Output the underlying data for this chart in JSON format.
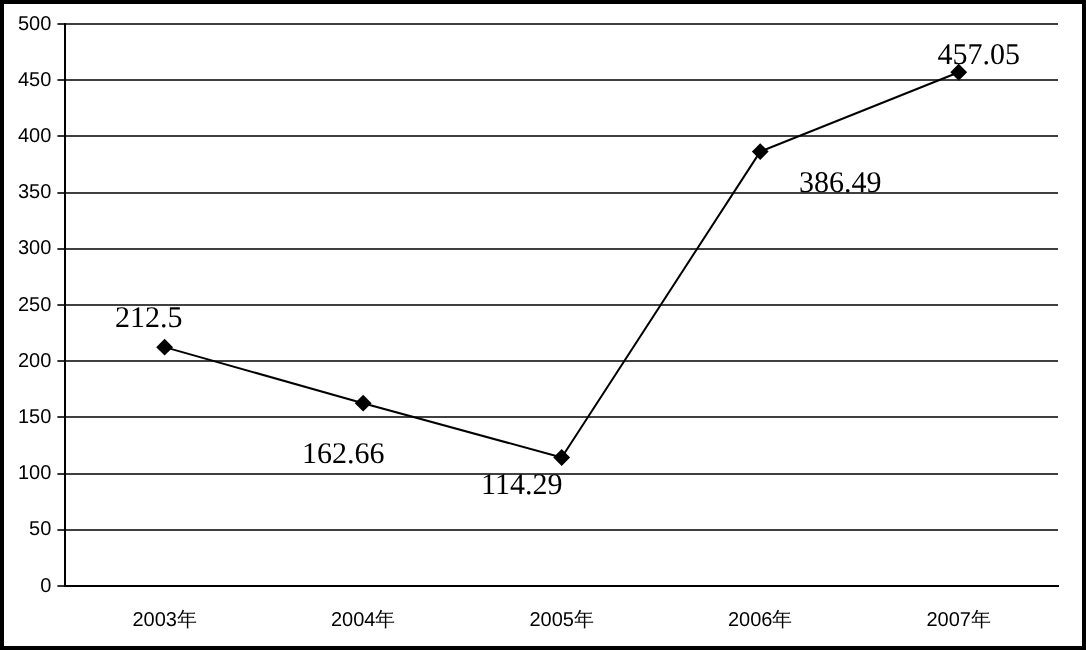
{
  "chart_data": {
    "type": "line",
    "categories": [
      "2003年",
      "2004年",
      "2005年",
      "2006年",
      "2007年"
    ],
    "series": [
      {
        "color": "#000000",
        "values": [
          212.5,
          162.66,
          114.29,
          386.49,
          457.05
        ]
      }
    ],
    "ylim": [
      0,
      500
    ],
    "yticks": [
      0,
      50,
      100,
      150,
      200,
      250,
      300,
      350,
      400,
      450,
      500
    ],
    "grid": "y",
    "legend": false,
    "marker": "diamond",
    "line_style": "solid",
    "data_labels": true
  }
}
